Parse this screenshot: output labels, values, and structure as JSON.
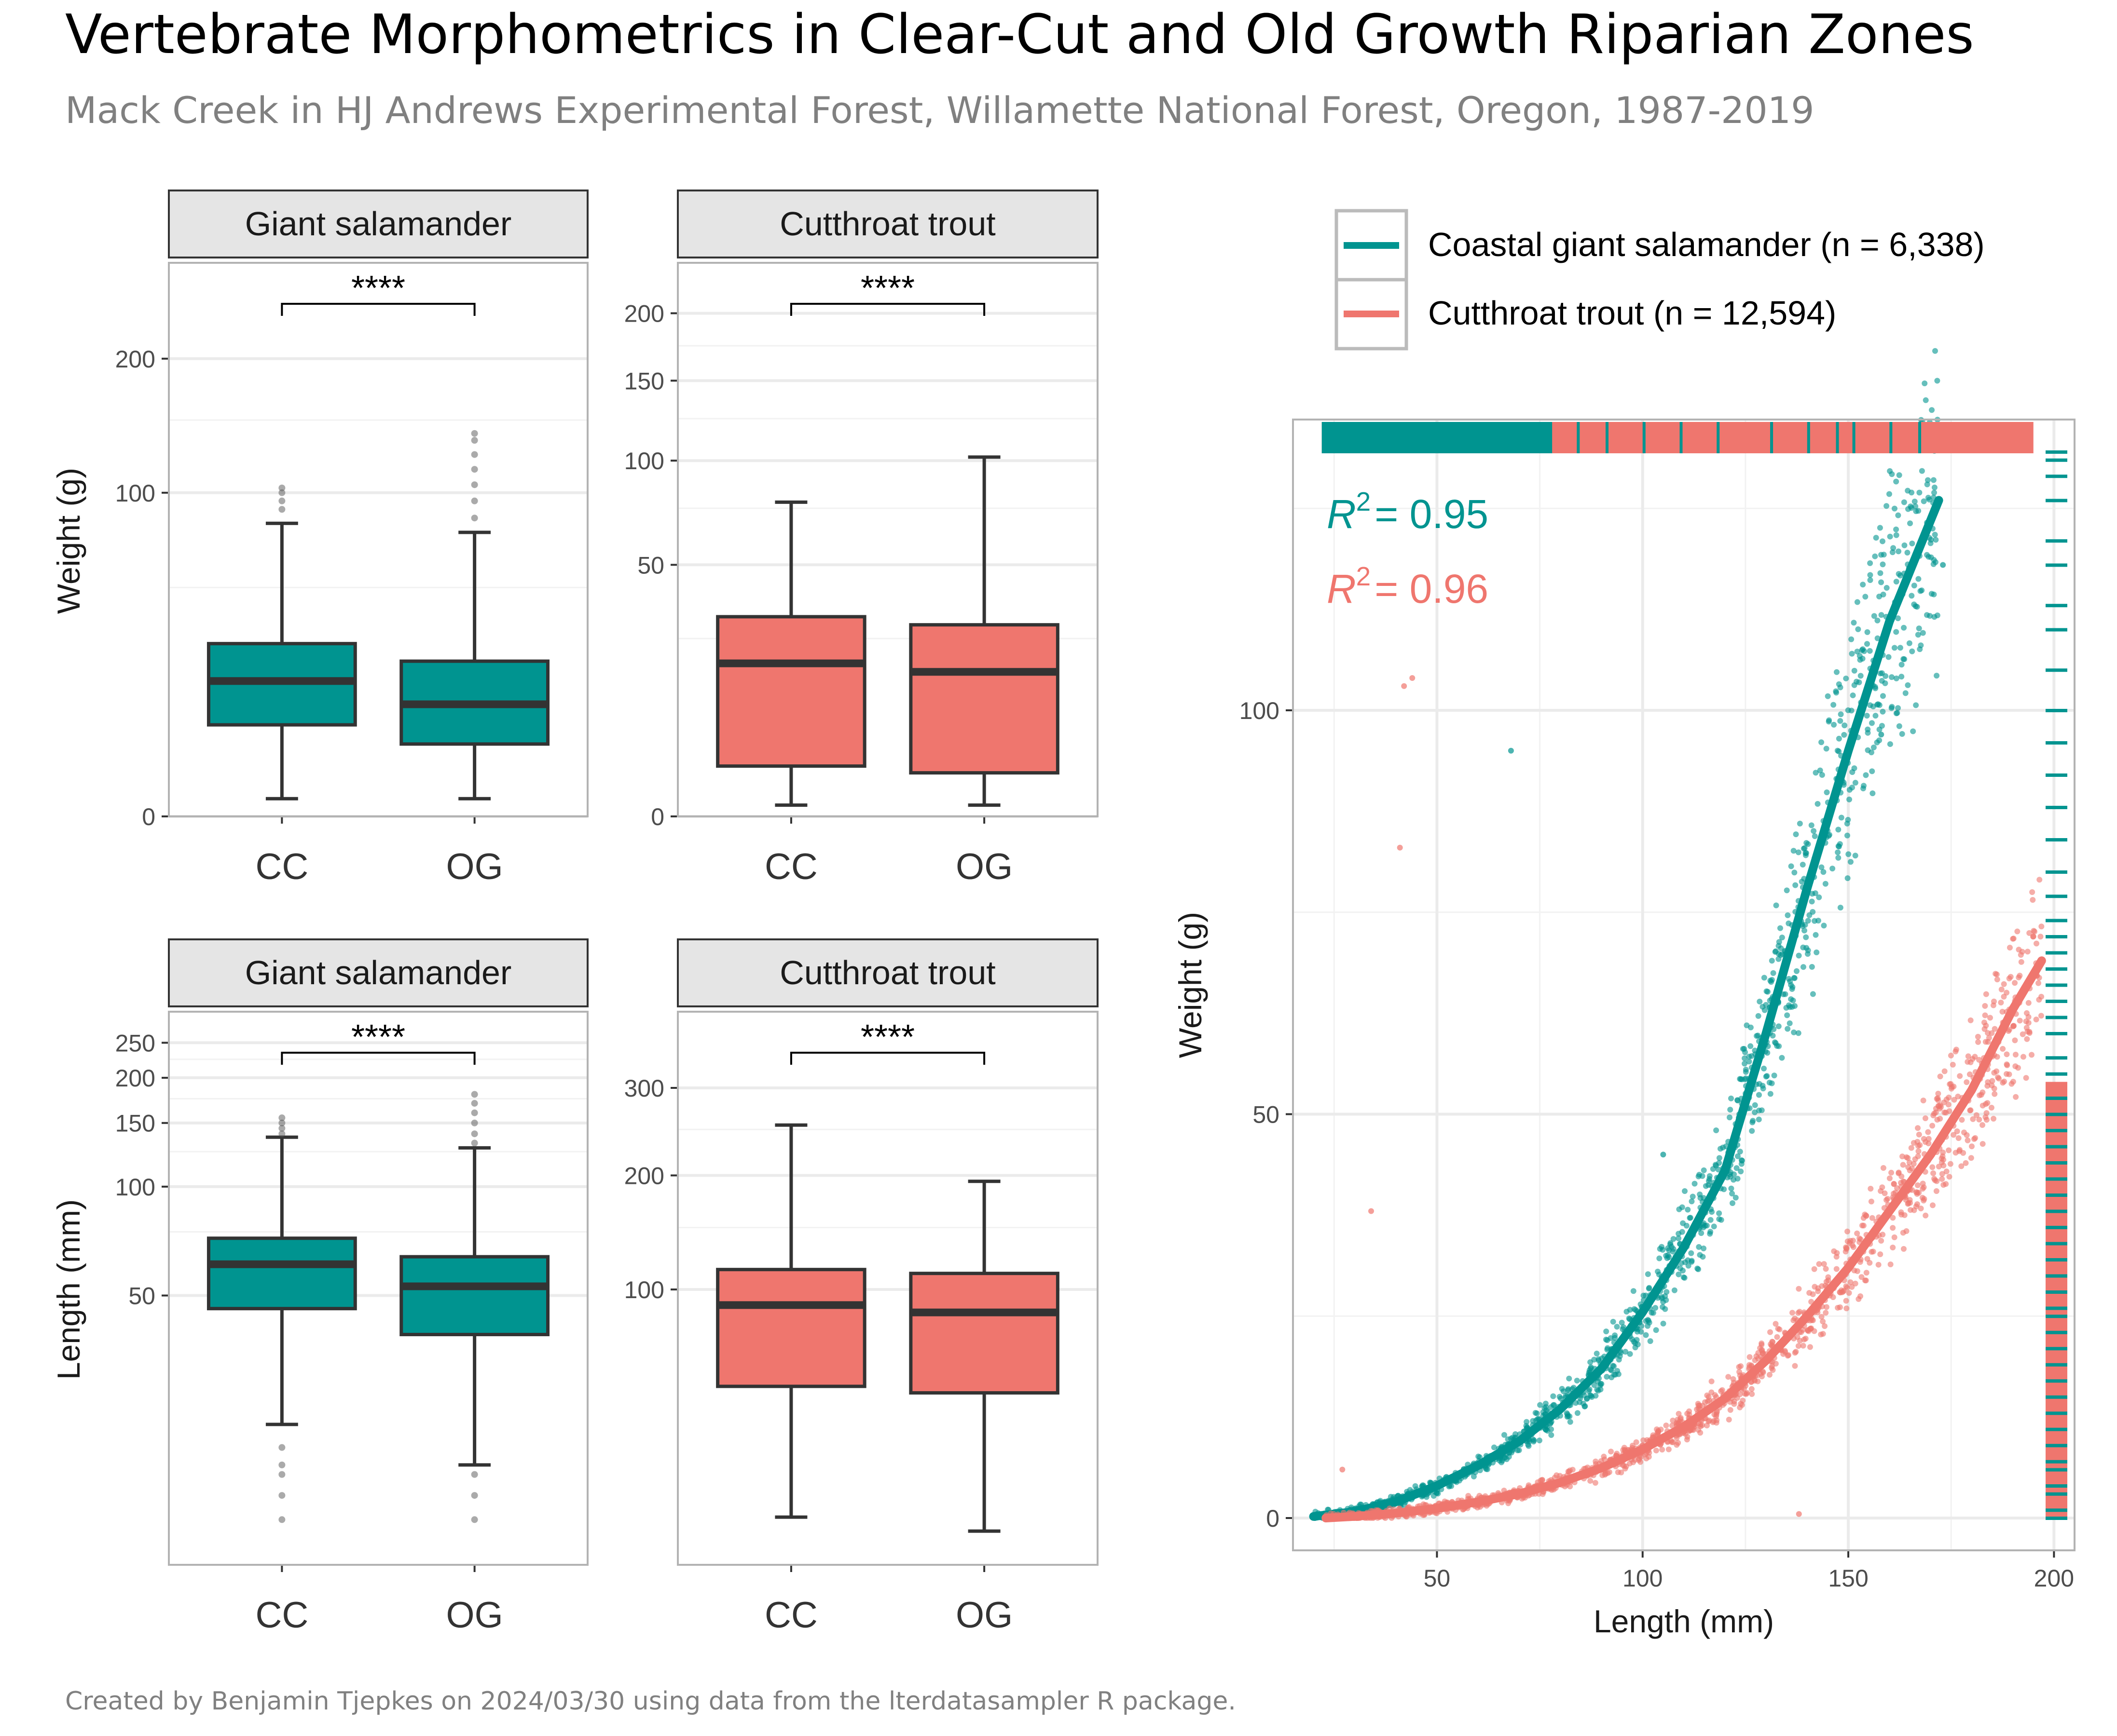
{
  "header": {
    "title": "Vertebrate Morphometrics in Clear-Cut and Old Growth Riparian Zones",
    "subtitle": "Mack Creek in HJ Andrews Experimental Forest, Willamette National Forest, Oregon, 1987-2019"
  },
  "caption": "Created by Benjamin Tjepkes on 2024/03/30 using data from the lterdatasampler R package.",
  "colors": {
    "salamander": "#009490",
    "trout": "#EF766E",
    "box_line": "#333333",
    "strip_fill": "#e5e5e5"
  },
  "legend": {
    "position": "top",
    "items": [
      {
        "key": "salamander",
        "label": "Coastal giant salamander (n = 6,338)"
      },
      {
        "key": "trout",
        "label": "Cutthroat trout (n = 12,594)"
      }
    ]
  },
  "chart_data": [
    {
      "type": "box",
      "panel": "weight-salamander",
      "strip": "Giant salamander",
      "ylabel": "Weight (g)",
      "xlabel": "",
      "scale": "sqrt",
      "categories": [
        "CC",
        "OG"
      ],
      "yticks": [
        0,
        100,
        200
      ],
      "ylim": [
        0,
        290
      ],
      "signif": "****",
      "color": "salamander",
      "boxes": [
        {
          "cat": "CC",
          "low": 0.3,
          "q1": 8,
          "median": 17.5,
          "q3": 28.5,
          "high": 82,
          "outliers": [
            90,
            95,
            100,
            103
          ]
        },
        {
          "cat": "OG",
          "low": 0.3,
          "q1": 5,
          "median": 12,
          "q3": 23,
          "high": 77,
          "outliers": [
            85,
            95,
            105,
            115,
            125,
            135,
            140
          ]
        }
      ]
    },
    {
      "type": "box",
      "panel": "weight-trout",
      "strip": "Cutthroat trout",
      "ylabel": "",
      "xlabel": "",
      "scale": "sqrt",
      "categories": [
        "CC",
        "OG"
      ],
      "yticks": [
        0,
        50,
        100,
        150,
        200
      ],
      "ylim": [
        0,
        240
      ],
      "signif": "****",
      "color": "trout",
      "boxes": [
        {
          "cat": "CC",
          "low": 0.1,
          "q1": 2,
          "median": 18.5,
          "q3": 31.5,
          "high": 78,
          "outliers": []
        },
        {
          "cat": "OG",
          "low": 0.1,
          "q1": 1.5,
          "median": 16.5,
          "q3": 29,
          "high": 102,
          "outliers": []
        }
      ]
    },
    {
      "type": "box",
      "panel": "length-salamander",
      "strip": "Giant salamander",
      "ylabel": "Length (mm)",
      "xlabel": "",
      "scale": "log10",
      "categories": [
        "CC",
        "OG"
      ],
      "yticks": [
        50,
        100,
        150,
        200,
        250
      ],
      "ylim": [
        9,
        300
      ],
      "signif": "****",
      "color": "salamander",
      "boxes": [
        {
          "cat": "CC",
          "low": 22,
          "q1": 46,
          "median": 61,
          "q3": 72,
          "high": 137,
          "outliers": [
            12,
            14,
            16,
            17,
            19,
            140,
            145,
            150,
            155
          ]
        },
        {
          "cat": "OG",
          "low": 17,
          "q1": 39,
          "median": 53,
          "q3": 64,
          "high": 128,
          "outliers": [
            12,
            14,
            16,
            132,
            140,
            150,
            160,
            170,
            180
          ]
        }
      ]
    },
    {
      "type": "box",
      "panel": "length-trout",
      "strip": "Cutthroat trout",
      "ylabel": "",
      "xlabel": "",
      "scale": "sqrt",
      "categories": [
        "CC",
        "OG"
      ],
      "yticks": [
        100,
        200,
        300
      ],
      "ylim": [
        0,
        400
      ],
      "signif": "****",
      "color": "trout",
      "boxes": [
        {
          "cat": "CC",
          "low": 3,
          "q1": 42,
          "median": 89,
          "q3": 115,
          "high": 255,
          "outliers": []
        },
        {
          "cat": "OG",
          "low": 1.5,
          "q1": 39,
          "median": 84,
          "q3": 112,
          "high": 194,
          "outliers": []
        }
      ]
    },
    {
      "type": "scatter",
      "panel": "length-weight",
      "xlabel": "Length (mm)",
      "ylabel": "Weight (g)",
      "xlim": [
        15,
        205
      ],
      "ylim": [
        -4,
        136
      ],
      "xticks": [
        50,
        100,
        150,
        200
      ],
      "yticks": [
        0,
        50,
        100
      ],
      "annotations": [
        {
          "text": "= 0.95",
          "prefix": "R",
          "sup": "2",
          "color": "salamander"
        },
        {
          "text": "= 0.96",
          "prefix": "R",
          "sup": "2",
          "color": "trout"
        }
      ],
      "series": [
        {
          "name": "Coastal giant salamander (n = 6,338)",
          "color": "salamander",
          "fit": {
            "x": [
              20,
              30,
              40,
              50,
              60,
              70,
              80,
              90,
              100,
              110,
              120,
              130,
              140,
              150,
              160,
              172
            ],
            "y": [
              0.2,
              0.8,
              2,
              4,
              6.5,
              9.5,
              13.5,
              18.5,
              25.5,
              33.5,
              43,
              60,
              78,
              95,
              111,
              126
            ]
          },
          "outliers": [
            [
              25,
              0.5
            ],
            [
              68,
              95
            ],
            [
              75,
              134
            ],
            [
              105,
              45
            ],
            [
              155,
              133
            ],
            [
              163,
              135
            ],
            [
              173,
              118
            ],
            [
              158,
              97
            ]
          ]
        },
        {
          "name": "Cutthroat trout (n = 12,594)",
          "color": "trout",
          "fit": {
            "x": [
              23,
              30,
              40,
              50,
              60,
              70,
              80,
              90,
              100,
              110,
              120,
              130,
              140,
              150,
              160,
              170,
              180,
              190,
              197
            ],
            "y": [
              0,
              0.2,
              0.6,
              1.2,
              2,
              3,
              4.4,
              6.2,
              8.5,
              11.3,
              14.8,
              19.5,
              25,
              31,
              38,
              45,
              53,
              63,
              69
            ]
          },
          "outliers": [
            [
              42,
              103
            ],
            [
              44,
              104
            ],
            [
              41,
              83
            ],
            [
              34,
              38
            ],
            [
              27,
              6
            ],
            [
              138,
              0.5
            ],
            [
              195,
              72
            ]
          ]
        }
      ]
    }
  ]
}
